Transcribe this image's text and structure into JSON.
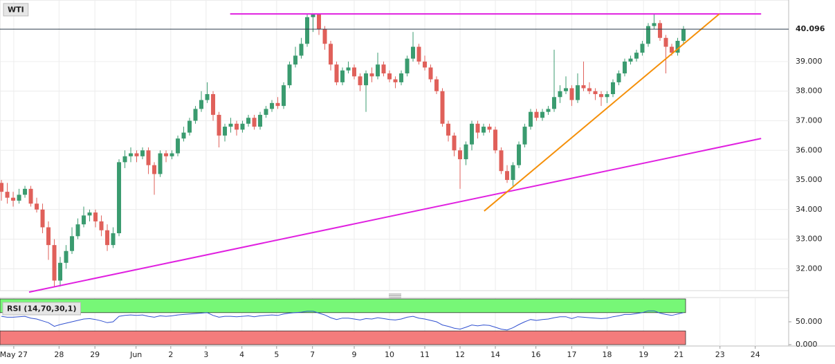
{
  "chart_data": [
    {
      "type": "candlestick",
      "title": "WTI",
      "up_color": "#3a9b6f",
      "down_color": "#e0605a",
      "candles": [
        [
          34.9,
          35.0,
          34.3,
          34.6
        ],
        [
          34.6,
          34.9,
          34.2,
          34.4
        ],
        [
          34.4,
          34.6,
          34.1,
          34.3
        ],
        [
          34.3,
          34.7,
          34.2,
          34.5
        ],
        [
          34.5,
          34.8,
          34.4,
          34.7
        ],
        [
          34.7,
          34.8,
          34.1,
          34.2
        ],
        [
          34.2,
          34.4,
          33.9,
          34.0
        ],
        [
          34.0,
          34.2,
          33.2,
          33.4
        ],
        [
          33.4,
          33.6,
          32.3,
          32.8
        ],
        [
          32.8,
          33.0,
          31.4,
          31.6
        ],
        [
          31.6,
          32.4,
          31.4,
          32.2
        ],
        [
          32.2,
          32.8,
          32.0,
          32.6
        ],
        [
          32.6,
          33.4,
          32.5,
          33.1
        ],
        [
          33.1,
          33.7,
          33.0,
          33.5
        ],
        [
          33.5,
          34.1,
          33.4,
          33.8
        ],
        [
          33.8,
          34.0,
          33.6,
          33.9
        ],
        [
          33.9,
          34.0,
          33.4,
          33.6
        ],
        [
          33.6,
          33.8,
          33.1,
          33.3
        ],
        [
          33.3,
          33.5,
          32.6,
          32.8
        ],
        [
          32.8,
          33.4,
          32.7,
          33.2
        ],
        [
          33.2,
          35.7,
          33.1,
          35.6
        ],
        [
          35.6,
          36.0,
          35.4,
          35.8
        ],
        [
          35.8,
          36.1,
          35.6,
          35.9
        ],
        [
          35.9,
          36.0,
          35.6,
          35.8
        ],
        [
          35.8,
          36.1,
          35.7,
          36.0
        ],
        [
          36.0,
          36.1,
          35.2,
          35.5
        ],
        [
          35.5,
          35.6,
          34.5,
          35.2
        ],
        [
          35.2,
          36.0,
          35.1,
          35.9
        ],
        [
          35.9,
          36.0,
          35.6,
          35.8
        ],
        [
          35.8,
          36.0,
          35.7,
          35.9
        ],
        [
          35.9,
          36.5,
          35.8,
          36.4
        ],
        [
          36.4,
          36.8,
          36.3,
          36.6
        ],
        [
          36.6,
          37.1,
          36.5,
          37.0
        ],
        [
          37.0,
          37.5,
          36.9,
          37.4
        ],
        [
          37.4,
          38.0,
          37.3,
          37.7
        ],
        [
          37.7,
          38.3,
          37.6,
          37.9
        ],
        [
          37.9,
          38.0,
          37.0,
          37.2
        ],
        [
          37.2,
          37.3,
          36.1,
          36.5
        ],
        [
          36.5,
          36.9,
          36.3,
          36.8
        ],
        [
          36.8,
          37.1,
          36.6,
          36.9
        ],
        [
          36.9,
          37.0,
          36.5,
          36.7
        ],
        [
          36.7,
          37.0,
          36.6,
          36.9
        ],
        [
          36.9,
          37.2,
          36.8,
          37.1
        ],
        [
          37.1,
          37.2,
          36.7,
          36.8
        ],
        [
          36.8,
          37.3,
          36.7,
          37.2
        ],
        [
          37.2,
          37.5,
          37.1,
          37.4
        ],
        [
          37.4,
          37.7,
          37.3,
          37.6
        ],
        [
          37.6,
          37.8,
          37.4,
          37.5
        ],
        [
          37.5,
          38.3,
          37.4,
          38.2
        ],
        [
          38.2,
          39.0,
          38.1,
          38.9
        ],
        [
          38.9,
          39.5,
          38.8,
          39.2
        ],
        [
          39.2,
          39.8,
          39.1,
          39.6
        ],
        [
          39.6,
          40.6,
          39.5,
          40.5
        ],
        [
          40.5,
          40.6,
          40.0,
          40.6
        ],
        [
          40.6,
          40.6,
          39.9,
          40.1
        ],
        [
          40.1,
          40.2,
          39.4,
          39.6
        ],
        [
          39.6,
          39.7,
          38.7,
          38.9
        ],
        [
          38.9,
          39.0,
          38.2,
          38.3
        ],
        [
          38.3,
          38.8,
          38.2,
          38.7
        ],
        [
          38.7,
          39.0,
          38.6,
          38.8
        ],
        [
          38.8,
          38.9,
          38.4,
          38.5
        ],
        [
          38.5,
          38.6,
          38.0,
          38.2
        ],
        [
          38.2,
          38.7,
          37.3,
          38.6
        ],
        [
          38.6,
          38.8,
          38.3,
          38.5
        ],
        [
          38.5,
          39.3,
          38.4,
          38.9
        ],
        [
          38.9,
          39.0,
          38.5,
          38.6
        ],
        [
          38.6,
          38.7,
          38.3,
          38.4
        ],
        [
          38.4,
          38.5,
          38.1,
          38.3
        ],
        [
          38.3,
          38.7,
          38.2,
          38.6
        ],
        [
          38.6,
          39.2,
          38.5,
          39.1
        ],
        [
          39.1,
          40.0,
          39.0,
          39.5
        ],
        [
          39.5,
          39.6,
          38.9,
          39.0
        ],
        [
          39.0,
          39.2,
          38.7,
          38.8
        ],
        [
          38.8,
          38.9,
          38.3,
          38.4
        ],
        [
          38.4,
          38.5,
          37.9,
          38.0
        ],
        [
          38.0,
          38.1,
          36.8,
          36.9
        ],
        [
          36.9,
          37.0,
          36.3,
          36.5
        ],
        [
          36.5,
          36.6,
          35.8,
          36.0
        ],
        [
          36.0,
          36.1,
          34.7,
          35.7
        ],
        [
          35.7,
          36.3,
          35.5,
          36.2
        ],
        [
          36.2,
          37.0,
          36.0,
          36.9
        ],
        [
          36.9,
          37.0,
          36.4,
          36.6
        ],
        [
          36.6,
          36.9,
          36.5,
          36.8
        ],
        [
          36.8,
          36.9,
          36.6,
          36.7
        ],
        [
          36.7,
          36.8,
          35.9,
          36.0
        ],
        [
          36.0,
          36.1,
          35.2,
          35.3
        ],
        [
          35.3,
          35.5,
          34.9,
          35.0
        ],
        [
          35.0,
          35.6,
          34.8,
          35.5
        ],
        [
          35.5,
          36.3,
          35.4,
          36.2
        ],
        [
          36.2,
          36.9,
          36.1,
          36.8
        ],
        [
          36.8,
          37.4,
          36.7,
          37.3
        ],
        [
          37.3,
          37.4,
          37.0,
          37.1
        ],
        [
          37.1,
          37.4,
          37.0,
          37.3
        ],
        [
          37.3,
          37.5,
          37.2,
          37.4
        ],
        [
          37.4,
          39.4,
          37.3,
          37.8
        ],
        [
          37.8,
          38.2,
          37.6,
          38.0
        ],
        [
          38.0,
          38.5,
          37.9,
          38.1
        ],
        [
          38.1,
          38.2,
          37.5,
          37.7
        ],
        [
          37.7,
          38.6,
          37.6,
          38.2
        ],
        [
          38.2,
          39.0,
          38.0,
          38.1
        ],
        [
          38.1,
          38.3,
          37.9,
          38.0
        ],
        [
          38.0,
          38.1,
          37.7,
          37.9
        ],
        [
          37.9,
          38.0,
          37.5,
          37.8
        ],
        [
          37.8,
          38.0,
          37.6,
          37.9
        ],
        [
          37.9,
          38.4,
          37.8,
          38.3
        ],
        [
          38.3,
          38.7,
          38.2,
          38.6
        ],
        [
          38.6,
          39.1,
          38.5,
          39.0
        ],
        [
          39.0,
          39.2,
          38.9,
          39.1
        ],
        [
          39.1,
          39.4,
          39.0,
          39.3
        ],
        [
          39.3,
          39.7,
          39.2,
          39.6
        ],
        [
          39.6,
          40.3,
          39.5,
          40.2
        ],
        [
          40.2,
          40.6,
          40.1,
          40.3
        ],
        [
          40.3,
          40.4,
          39.7,
          39.8
        ],
        [
          39.8,
          39.9,
          38.6,
          39.5
        ],
        [
          39.5,
          39.6,
          39.2,
          39.3
        ],
        [
          39.3,
          39.8,
          39.2,
          39.7
        ],
        [
          39.7,
          40.2,
          39.6,
          40.1
        ]
      ],
      "last_price": 40.096,
      "ylim": [
        31.26,
        41.08
      ],
      "yticks": [
        {
          "value": 32,
          "label": "32.000"
        },
        {
          "value": 33,
          "label": "33.000"
        },
        {
          "value": 34,
          "label": "34.000"
        },
        {
          "value": 35,
          "label": "35.000"
        },
        {
          "value": 36,
          "label": "36.000"
        },
        {
          "value": 37,
          "label": "37.000"
        },
        {
          "value": 38,
          "label": "38.000"
        },
        {
          "value": 39,
          "label": "39.000"
        }
      ],
      "xlim": [
        -0.24,
        133.88
      ],
      "xticks": [
        {
          "value": 2.1,
          "label": "May 27"
        },
        {
          "value": 9.8,
          "label": "28"
        },
        {
          "value": 15.9,
          "label": "29"
        },
        {
          "value": 22.9,
          "label": "Jun"
        },
        {
          "value": 28.8,
          "label": "2"
        },
        {
          "value": 34.8,
          "label": "3"
        },
        {
          "value": 40.9,
          "label": "4"
        },
        {
          "value": 46.8,
          "label": "5"
        },
        {
          "value": 52.9,
          "label": "7"
        },
        {
          "value": 60,
          "label": "9"
        },
        {
          "value": 66,
          "label": "10"
        },
        {
          "value": 72,
          "label": "11"
        },
        {
          "value": 78,
          "label": "12"
        },
        {
          "value": 84,
          "label": "14"
        },
        {
          "value": 90.9,
          "label": "16"
        },
        {
          "value": 97,
          "label": "17"
        },
        {
          "value": 103,
          "label": "18"
        },
        {
          "value": 109.2,
          "label": "19"
        },
        {
          "value": 115.2,
          "label": "21"
        },
        {
          "value": 122.2,
          "label": "23"
        },
        {
          "value": 128.2,
          "label": "24"
        }
      ],
      "grid": true,
      "lines": [
        {
          "color": "#e020e0",
          "x": [
            38.9,
            129.2
          ],
          "y": [
            40.61,
            40.61
          ]
        },
        {
          "color": "#e020e0",
          "x": [
            4.7,
            129.2
          ],
          "y": [
            31.21,
            36.4
          ]
        },
        {
          "color": "#f5900a",
          "x": [
            82.1,
            122.1
          ],
          "y": [
            33.95,
            40.61
          ]
        }
      ]
    },
    {
      "type": "line",
      "title": "RSI (14,70,30,1)",
      "color": "#3050d0",
      "values": [
        62,
        60,
        60,
        61,
        62,
        58,
        56,
        52,
        48,
        40,
        44,
        47,
        50,
        53,
        56,
        57,
        55,
        52,
        48,
        50,
        62,
        64,
        65,
        64,
        65,
        62,
        60,
        63,
        62,
        63,
        65,
        66,
        67,
        68,
        69,
        70,
        64,
        60,
        62,
        62,
        61,
        62,
        63,
        61,
        63,
        64,
        65,
        64,
        67,
        69,
        70,
        71,
        73,
        73,
        69,
        65,
        59,
        55,
        58,
        58,
        56,
        54,
        57,
        56,
        59,
        57,
        55,
        54,
        56,
        60,
        62,
        58,
        56,
        53,
        50,
        43,
        40,
        36,
        34,
        38,
        43,
        41,
        43,
        42,
        38,
        34,
        32,
        37,
        44,
        50,
        55,
        53,
        55,
        56,
        59,
        61,
        61,
        57,
        61,
        60,
        59,
        58,
        57,
        58,
        61,
        63,
        66,
        66,
        68,
        70,
        74,
        74,
        69,
        66,
        64,
        67,
        70
      ],
      "ylim": [
        -3,
        103
      ],
      "yticks": [
        {
          "value": 0,
          "label": "0.000"
        },
        {
          "value": 50,
          "label": "50.000"
        }
      ],
      "bands": [
        {
          "range": [
            70,
            100
          ],
          "color": "#77f777"
        },
        {
          "range": [
            0,
            30
          ],
          "color": "#f47c7c"
        }
      ]
    }
  ]
}
